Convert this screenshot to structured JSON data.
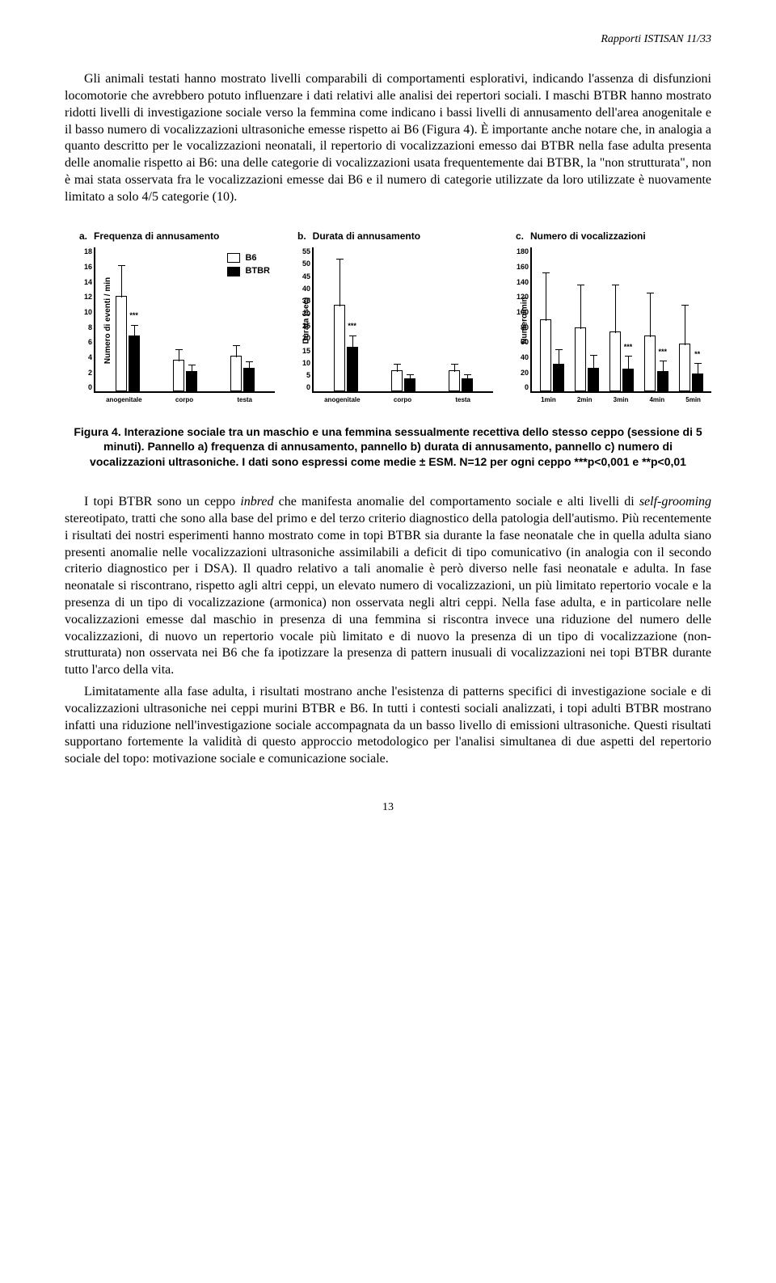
{
  "runningHead": "Rapporti ISTISAN 11/33",
  "para1": "Gli animali testati hanno mostrato livelli comparabili di comportamenti esplorativi, indicando l'assenza di disfunzioni locomotorie che avrebbero potuto influenzare i dati relativi alle analisi dei repertori sociali. I maschi BTBR hanno mostrato ridotti livelli di investigazione sociale verso la femmina come indicano i bassi livelli di annusamento dell'area anogenitale e il basso numero di vocalizzazioni ultrasoniche emesse rispetto ai B6 (Figura 4). È importante anche notare che, in analogia a quanto descritto per le vocalizzazioni neonatali, il repertorio di vocalizzazioni emesso dai BTBR nella fase adulta presenta delle anomalie rispetto ai B6: una delle categorie di vocalizzazioni usata frequentemente dai BTBR, la \"non strutturata\", non è mai stata osservata fra le vocalizzazioni emesse dai B6 e il numero di categorie utilizzate da loro utilizzate è nuovamente limitato a solo 4/5 categorie (10).",
  "figure": {
    "legend": {
      "b6": "B6",
      "btbr": "BTBR"
    },
    "colors": {
      "b6": "#ffffff",
      "btbr": "#000000",
      "axis": "#000000"
    },
    "panelA": {
      "letter": "a.",
      "title": "Frequenza di annusamento",
      "ylabel": "Numero di eventi / min",
      "ymax": 18,
      "yticks": [
        "18",
        "16",
        "14",
        "12",
        "10",
        "8",
        "6",
        "4",
        "2",
        "0"
      ],
      "categories": [
        "anogenitale",
        "corpo",
        "testa"
      ],
      "b6": [
        {
          "v": 12,
          "e": 4
        },
        {
          "v": 4,
          "e": 1.5
        },
        {
          "v": 4.5,
          "e": 1.5
        }
      ],
      "btbr": [
        {
          "v": 7,
          "e": 1.5,
          "sig": "***"
        },
        {
          "v": 2.5,
          "e": 1
        },
        {
          "v": 3,
          "e": 1
        }
      ]
    },
    "panelB": {
      "letter": "b.",
      "title": "Durata di annusamento",
      "ylabel": "Durata (sec)",
      "ymax": 55,
      "yticks": [
        "55",
        "50",
        "45",
        "40",
        "35",
        "30",
        "25",
        "20",
        "15",
        "10",
        "5",
        "0"
      ],
      "categories": [
        "anogenitale",
        "corpo",
        "testa"
      ],
      "b6": [
        {
          "v": 33,
          "e": 18
        },
        {
          "v": 8,
          "e": 3
        },
        {
          "v": 8,
          "e": 3
        }
      ],
      "btbr": [
        {
          "v": 17,
          "e": 5,
          "sig": "***"
        },
        {
          "v": 5,
          "e": 2
        },
        {
          "v": 5,
          "e": 2
        }
      ]
    },
    "panelC": {
      "letter": "c.",
      "title": "Numero di vocalizzazioni",
      "ylabel": "Numero/min",
      "ymax": 180,
      "yticks": [
        "180",
        "160",
        "140",
        "120",
        "100",
        "80",
        "60",
        "40",
        "20",
        "0"
      ],
      "categories": [
        "1min",
        "2min",
        "3min",
        "4min",
        "5min"
      ],
      "b6": [
        {
          "v": 90,
          "e": 60
        },
        {
          "v": 80,
          "e": 55
        },
        {
          "v": 75,
          "e": 60
        },
        {
          "v": 70,
          "e": 55
        },
        {
          "v": 60,
          "e": 50
        }
      ],
      "btbr": [
        {
          "v": 35,
          "e": 20
        },
        {
          "v": 30,
          "e": 18
        },
        {
          "v": 28,
          "e": 18,
          "sig": "***"
        },
        {
          "v": 25,
          "e": 15,
          "sig": "***"
        },
        {
          "v": 22,
          "e": 15,
          "sig": "**"
        }
      ]
    }
  },
  "caption": "Figura 4. Interazione sociale tra un maschio e una femmina sessualmente recettiva dello stesso ceppo (sessione di 5 minuti). Pannello a) frequenza di annusamento, pannello b) durata di annusamento, pannello c) numero di vocalizzazioni ultrasoniche. I dati sono espressi come medie ± ESM. N=12 per ogni ceppo ***p<0,001 e **p<0,01",
  "para2_pre": "I topi BTBR sono un ceppo ",
  "para2_em1": "inbred",
  "para2_mid1": " che manifesta anomalie del comportamento sociale e alti livelli di ",
  "para2_em2": "self-grooming",
  "para2_post": " stereotipato, tratti che sono alla base del primo e del terzo criterio diagnostico della patologia dell'autismo. Più recentemente i risultati dei nostri esperimenti hanno mostrato come in topi BTBR sia durante la fase neonatale che in quella adulta siano presenti anomalie nelle vocalizzazioni ultrasoniche assimilabili a deficit di tipo comunicativo (in analogia con il secondo criterio diagnostico per i DSA). Il quadro relativo a tali anomalie è però diverso nelle fasi neonatale e adulta. In fase neonatale si riscontrano, rispetto agli altri ceppi, un elevato numero di vocalizzazioni, un più limitato repertorio vocale e la presenza di un tipo di vocalizzazione (armonica) non osservata negli altri ceppi. Nella fase adulta, e in particolare nelle vocalizzazioni emesse dal maschio in presenza di una femmina si riscontra invece una riduzione del numero delle vocalizzazioni, di nuovo un repertorio vocale più limitato e di nuovo la presenza di un tipo di vocalizzazione (non-strutturata) non osservata nei B6 che fa ipotizzare la presenza di pattern inusuali di vocalizzazioni nei topi BTBR durante tutto l'arco della vita.",
  "para3": "Limitatamente alla fase adulta, i risultati mostrano anche l'esistenza di patterns specifici di investigazione sociale e di vocalizzazioni ultrasoniche nei ceppi murini BTBR e B6. In tutti i contesti sociali analizzati, i topi adulti BTBR mostrano infatti una riduzione nell'investigazione sociale accompagnata da un basso livello di emissioni ultrasoniche. Questi risultati supportano fortemente la validità di questo approccio metodologico per l'analisi simultanea di due aspetti del repertorio sociale del topo: motivazione sociale e comunicazione sociale.",
  "pageNumber": "13"
}
